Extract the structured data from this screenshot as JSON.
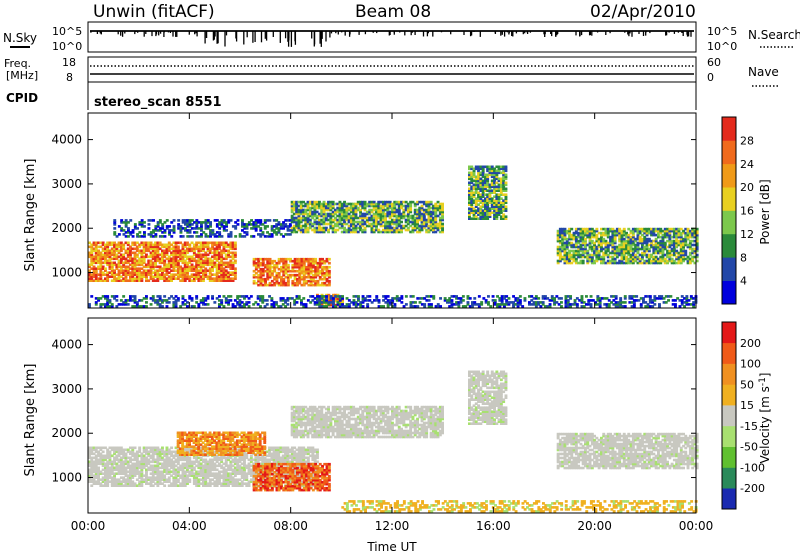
{
  "header": {
    "station": "Unwin (fitACF)",
    "beam": "Beam 08",
    "date": "02/Apr/2010"
  },
  "nsky_panel": {
    "label": "N.Sky",
    "ticks": [
      "10^5",
      "10^0"
    ],
    "right_ticks": [
      "10^5",
      "10^0"
    ],
    "right_label": "N.Search"
  },
  "freq_panel": {
    "label_line1": "Freq.",
    "label_line2": "[MHz]",
    "ticks": [
      "18",
      "8"
    ],
    "right_ticks": [
      "60",
      "0"
    ],
    "right_label": "Nave"
  },
  "cpid_panel": {
    "label": "CPID",
    "text": "stereo_scan 8551"
  },
  "chart_data": [
    {
      "type": "heatmap",
      "name": "power",
      "ylabel": "Slant Range [km]",
      "ylim": [
        200,
        4600
      ],
      "yticks": [
        "1000",
        "2000",
        "3000",
        "4000"
      ],
      "xlim": [
        "00:00",
        "24:00"
      ],
      "colorbar": {
        "label": "Power [dB]",
        "ticks": [
          "28",
          "24",
          "20",
          "16",
          "12",
          "8",
          "4"
        ],
        "colors": [
          "#0000dd",
          "#2247a8",
          "#2a8a3a",
          "#7cc84c",
          "#e8d020",
          "#f09a18",
          "#f06a1c",
          "#e42a1c"
        ]
      },
      "bands": [
        {
          "t0": 0.0,
          "t1": 5.8,
          "r0": 800,
          "r1": 1700,
          "level": "high"
        },
        {
          "t0": 6.5,
          "t1": 9.5,
          "r0": 700,
          "r1": 1300,
          "level": "high"
        },
        {
          "t0": 9.0,
          "t1": 10.0,
          "r0": 250,
          "r1": 500,
          "level": "high"
        },
        {
          "t0": 1.0,
          "t1": 8.0,
          "r0": 1800,
          "r1": 2200,
          "level": "low"
        },
        {
          "t0": 8.0,
          "t1": 14.0,
          "r0": 1900,
          "r1": 2600,
          "level": "mid"
        },
        {
          "t0": 15.0,
          "t1": 16.5,
          "r0": 2200,
          "r1": 3400,
          "level": "mid"
        },
        {
          "t0": 18.5,
          "t1": 24.0,
          "r0": 1200,
          "r1": 2000,
          "level": "mid"
        },
        {
          "t0": 0.0,
          "t1": 24.0,
          "r0": 220,
          "r1": 480,
          "level": "low"
        }
      ]
    },
    {
      "type": "heatmap",
      "name": "velocity",
      "ylabel": "Slant Range [km]",
      "ylim": [
        200,
        4600
      ],
      "yticks": [
        "1000",
        "2000",
        "3000",
        "4000"
      ],
      "xticks": [
        "00:00",
        "04:00",
        "08:00",
        "12:00",
        "16:00",
        "20:00",
        "00:00"
      ],
      "xlabel": "Time UT",
      "colorbar": {
        "label": "Velocity [m s-1]",
        "ticks": [
          "200",
          "100",
          "50",
          "15",
          "-15",
          "-50",
          "-100",
          "-200"
        ],
        "colors": [
          "#1a2ab0",
          "#2a8a5a",
          "#60c030",
          "#a8e070",
          "#c8c8c0",
          "#f0b020",
          "#f09020",
          "#f05a18",
          "#e41818"
        ]
      },
      "bands": [
        {
          "t0": 0.0,
          "t1": 9.0,
          "r0": 800,
          "r1": 1700,
          "level": "ground"
        },
        {
          "t0": 6.5,
          "t1": 9.5,
          "r0": 700,
          "r1": 1300,
          "level": "neg-strong"
        },
        {
          "t0": 3.5,
          "t1": 7.0,
          "r0": 1500,
          "r1": 2000,
          "level": "neg-mid"
        },
        {
          "t0": 8.0,
          "t1": 14.0,
          "r0": 1900,
          "r1": 2600,
          "level": "ground"
        },
        {
          "t0": 15.0,
          "t1": 16.5,
          "r0": 2200,
          "r1": 3400,
          "level": "ground"
        },
        {
          "t0": 18.5,
          "t1": 24.0,
          "r0": 1200,
          "r1": 2000,
          "level": "ground"
        },
        {
          "t0": 10.0,
          "t1": 24.0,
          "r0": 220,
          "r1": 480,
          "level": "neg-weak"
        }
      ]
    }
  ]
}
